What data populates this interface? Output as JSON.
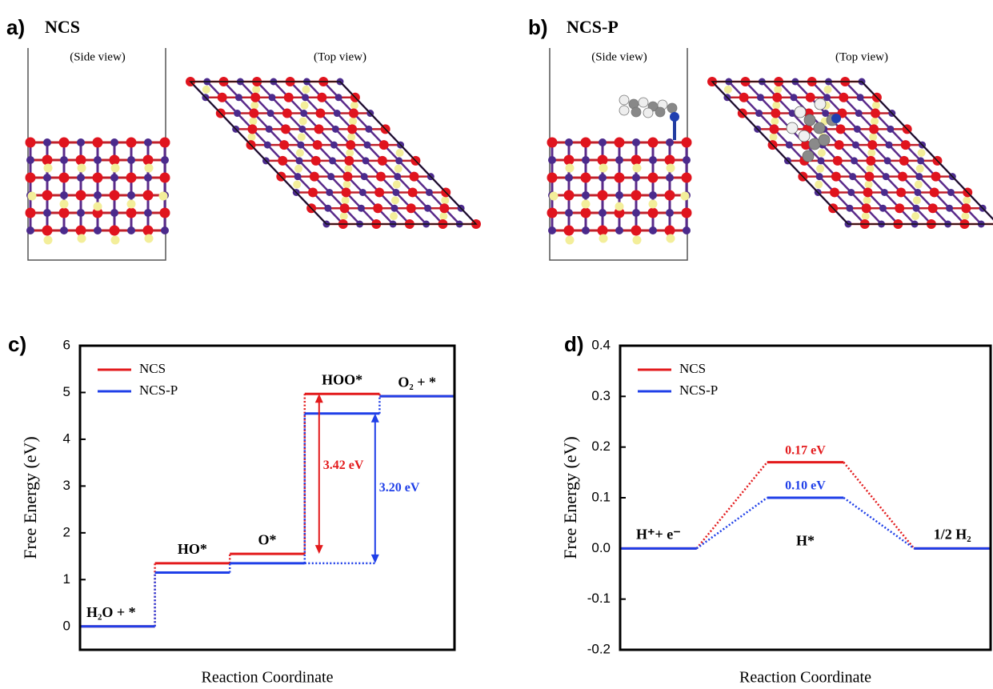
{
  "structure_panels": [
    {
      "label": "a)",
      "title": "NCS",
      "views": [
        "(Side view)",
        "(Top view)"
      ]
    },
    {
      "label": "b)",
      "title": "NCS-P",
      "views": [
        "(Side view)",
        "(Top view)"
      ]
    }
  ],
  "chart_data": [
    {
      "type": "step",
      "panel_label": "c)",
      "xlabel": "Reaction Coordinate",
      "ylabel": "Free Energy (eV)",
      "categories": [
        "H₂O + *",
        "HO*",
        "O*",
        "HOO*",
        "O₂ + *"
      ],
      "series": [
        {
          "name": "NCS",
          "color": "#e31a1c",
          "values": [
            0,
            1.35,
            1.55,
            4.97,
            4.92
          ]
        },
        {
          "name": "NCS-P",
          "color": "#1f3fe8",
          "values": [
            0,
            1.15,
            1.35,
            4.55,
            4.92
          ]
        }
      ],
      "annotations": [
        {
          "text": "3.42 eV",
          "color": "#e31a1c"
        },
        {
          "text": "3.20 eV",
          "color": "#1f3fe8"
        }
      ],
      "ylim": [
        -0.5,
        6
      ],
      "yticks": [
        0,
        1,
        2,
        3,
        4,
        5,
        6
      ],
      "legend": "upper left"
    },
    {
      "type": "pathway",
      "panel_label": "d)",
      "xlabel": "Reaction Coordinate",
      "ylabel": "Free Energy (eV)",
      "categories": [
        "H⁺+ e⁻",
        "H*",
        "1/2 H₂"
      ],
      "series": [
        {
          "name": "NCS",
          "color": "#e31a1c",
          "values": [
            0,
            0.17,
            0
          ],
          "value_labels": [
            null,
            "0.17 eV",
            null
          ]
        },
        {
          "name": "NCS-P",
          "color": "#1f3fe8",
          "values": [
            0,
            0.1,
            0
          ],
          "value_labels": [
            null,
            "0.10 eV",
            null
          ]
        }
      ],
      "ylim": [
        -0.2,
        0.4
      ],
      "yticks": [
        -0.2,
        -0.1,
        {
          "value": 0,
          "label": "0.0"
        },
        0.1,
        0.2,
        0.3,
        0.4
      ],
      "legend": "upper left"
    }
  ]
}
